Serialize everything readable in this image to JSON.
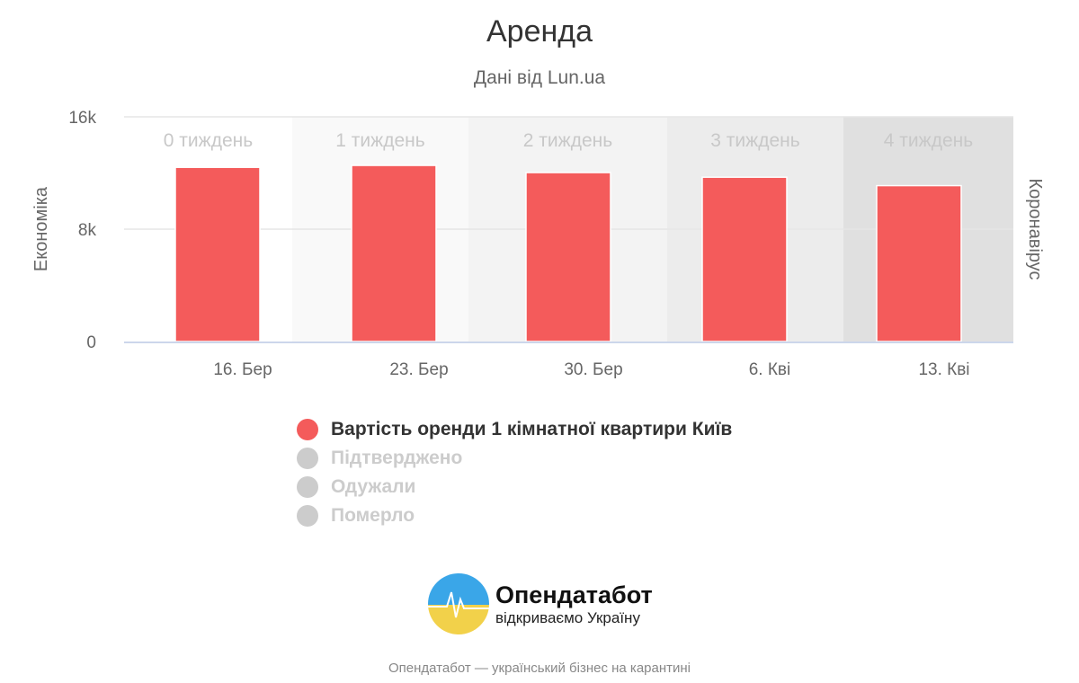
{
  "title": "Аренда",
  "subtitle": "Дані від Lun.ua",
  "chart_data": {
    "type": "bar",
    "categories": [
      "16. Бер",
      "23. Бер",
      "30. Бер",
      "6. Кві",
      "13. Кві"
    ],
    "series": [
      {
        "name": "Вартість оренди 1 кімнатної квартири Київ",
        "values": [
          12400,
          12540,
          12030,
          11700,
          11100
        ],
        "color": "#f45b5b"
      }
    ],
    "ylabel": "Економіка",
    "ylabel_right": "Коронавірус",
    "yticks": [
      "0",
      "8k",
      "16k"
    ],
    "ylim": [
      0,
      16000
    ],
    "bands": [
      {
        "label": "0 тиждень",
        "color": "#ffffff"
      },
      {
        "label": "1 тиждень",
        "color": "#f9f9f9"
      },
      {
        "label": "2 тиждень",
        "color": "#f3f3f3"
      },
      {
        "label": "3 тиждень",
        "color": "#ececec"
      },
      {
        "label": "4 тиждень",
        "color": "#e0e0e0"
      }
    ],
    "legend": [
      {
        "label": "Вартість оренди 1 кімнатної квартири Київ",
        "color": "#f45b5b",
        "active": true
      },
      {
        "label": "Підтверджено",
        "color": "#cccccc",
        "active": false
      },
      {
        "label": "Одужали",
        "color": "#cccccc",
        "active": false
      },
      {
        "label": "Померло",
        "color": "#cccccc",
        "active": false
      }
    ],
    "legend_position": "bottom",
    "grid": true
  },
  "logo": {
    "name": "Опендатабот",
    "tagline": "відкриваємо Україну"
  },
  "footer": "Опендатабот — український бізнес на карантині"
}
